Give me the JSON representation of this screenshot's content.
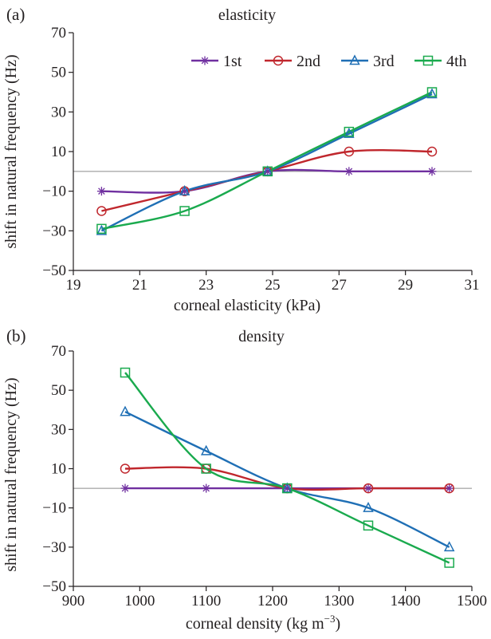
{
  "chart_data": [
    {
      "type": "line",
      "panel_label": "(a)",
      "title": "elasticity",
      "xlabel": "corneal elasticity (kPa)",
      "ylabel": "shift in natural frequency (Hz)",
      "xlim": [
        19,
        31
      ],
      "ylim": [
        -50,
        70
      ],
      "xticks": [
        19,
        21,
        23,
        25,
        27,
        29,
        31
      ],
      "yticks": [
        -50,
        -30,
        -10,
        10,
        30,
        50,
        70
      ],
      "grid": false,
      "legend_position": "top-right",
      "x": [
        19.85,
        22.35,
        24.85,
        27.3,
        29.8
      ],
      "series": [
        {
          "name": "1st",
          "color": "#7030a0",
          "marker": "star",
          "values": [
            -10,
            -10,
            0,
            0,
            0
          ]
        },
        {
          "name": "2nd",
          "color": "#c0272d",
          "marker": "circle",
          "values": [
            -20,
            -10,
            0,
            10,
            10
          ]
        },
        {
          "name": "3rd",
          "color": "#1f6fb5",
          "marker": "triangle",
          "values": [
            -30,
            -10,
            0,
            19,
            39
          ]
        },
        {
          "name": "4th",
          "color": "#1aaa4e",
          "marker": "square",
          "values": [
            -29,
            -20,
            0,
            20,
            40
          ]
        }
      ]
    },
    {
      "type": "line",
      "panel_label": "(b)",
      "title": "density",
      "xlabel_main": "corneal density (kg m",
      "xlabel_sup": "−3",
      "xlabel_end": ")",
      "ylabel": "shift in natural frequency (Hz)",
      "xlim": [
        900,
        1500
      ],
      "ylim": [
        -50,
        70
      ],
      "xticks": [
        900,
        1000,
        1100,
        1200,
        1300,
        1400,
        1500
      ],
      "yticks": [
        -50,
        -30,
        -10,
        10,
        30,
        50,
        70
      ],
      "grid": false,
      "x": [
        978,
        1100,
        1222,
        1344,
        1466
      ],
      "series": [
        {
          "name": "1st",
          "color": "#7030a0",
          "marker": "star",
          "values": [
            0,
            0,
            0,
            0,
            0
          ]
        },
        {
          "name": "2nd",
          "color": "#c0272d",
          "marker": "circle",
          "values": [
            10,
            10,
            0,
            0,
            0
          ]
        },
        {
          "name": "3rd",
          "color": "#1f6fb5",
          "marker": "triangle",
          "values": [
            39,
            19,
            0,
            -10,
            -30
          ]
        },
        {
          "name": "4th",
          "color": "#1aaa4e",
          "marker": "square",
          "values": [
            59,
            10,
            0,
            -19,
            -38
          ]
        }
      ]
    }
  ]
}
